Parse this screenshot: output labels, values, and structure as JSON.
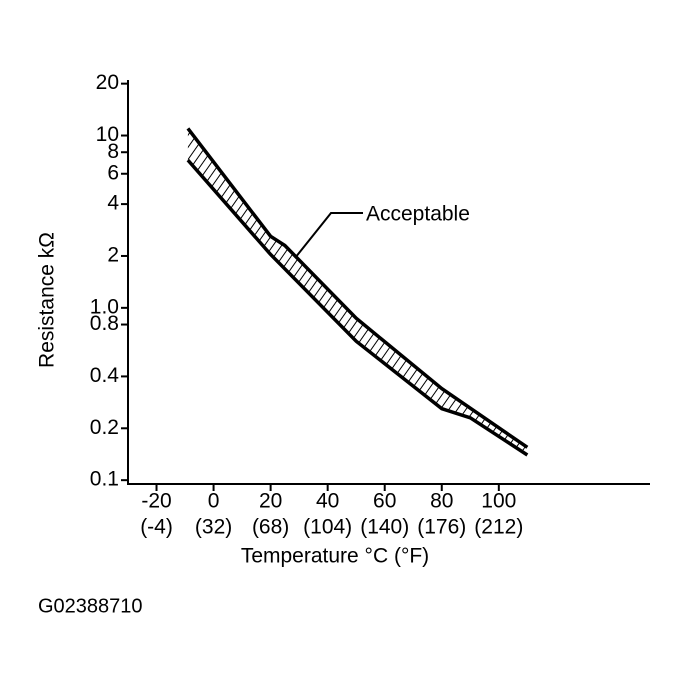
{
  "chart_data": {
    "type": "band",
    "log_y": true,
    "grid": false,
    "color": "#000000",
    "y_label": "Resistance kΩ",
    "x_label": "Temperature °C (°F)",
    "annotation": "Acceptable",
    "caption": "G02388710",
    "xlim": [
      -30,
      153
    ],
    "ylim": [
      0.095,
      21
    ],
    "xticks": [
      -20,
      0,
      20,
      40,
      60,
      80,
      100
    ],
    "xtick_labels_f": [
      "(-4)",
      "(32)",
      "(68)",
      "(104)",
      "(140)",
      "(176)",
      "(212)"
    ],
    "yticks": [
      0.1,
      0.2,
      0.4,
      0.8,
      {
        "value": 1,
        "label": "1.0"
      },
      2,
      4,
      6,
      8,
      10,
      20
    ],
    "series": [
      {
        "name": "upper",
        "x": [
          -9,
          20,
          25,
          50,
          80,
          110
        ],
        "values": [
          11,
          2.6,
          2.3,
          0.87,
          0.34,
          0.155
        ]
      },
      {
        "name": "lower",
        "x": [
          -9,
          20,
          50,
          80,
          90,
          110
        ],
        "values": [
          7.2,
          2.04,
          0.64,
          0.26,
          0.23,
          0.14
        ]
      }
    ]
  }
}
